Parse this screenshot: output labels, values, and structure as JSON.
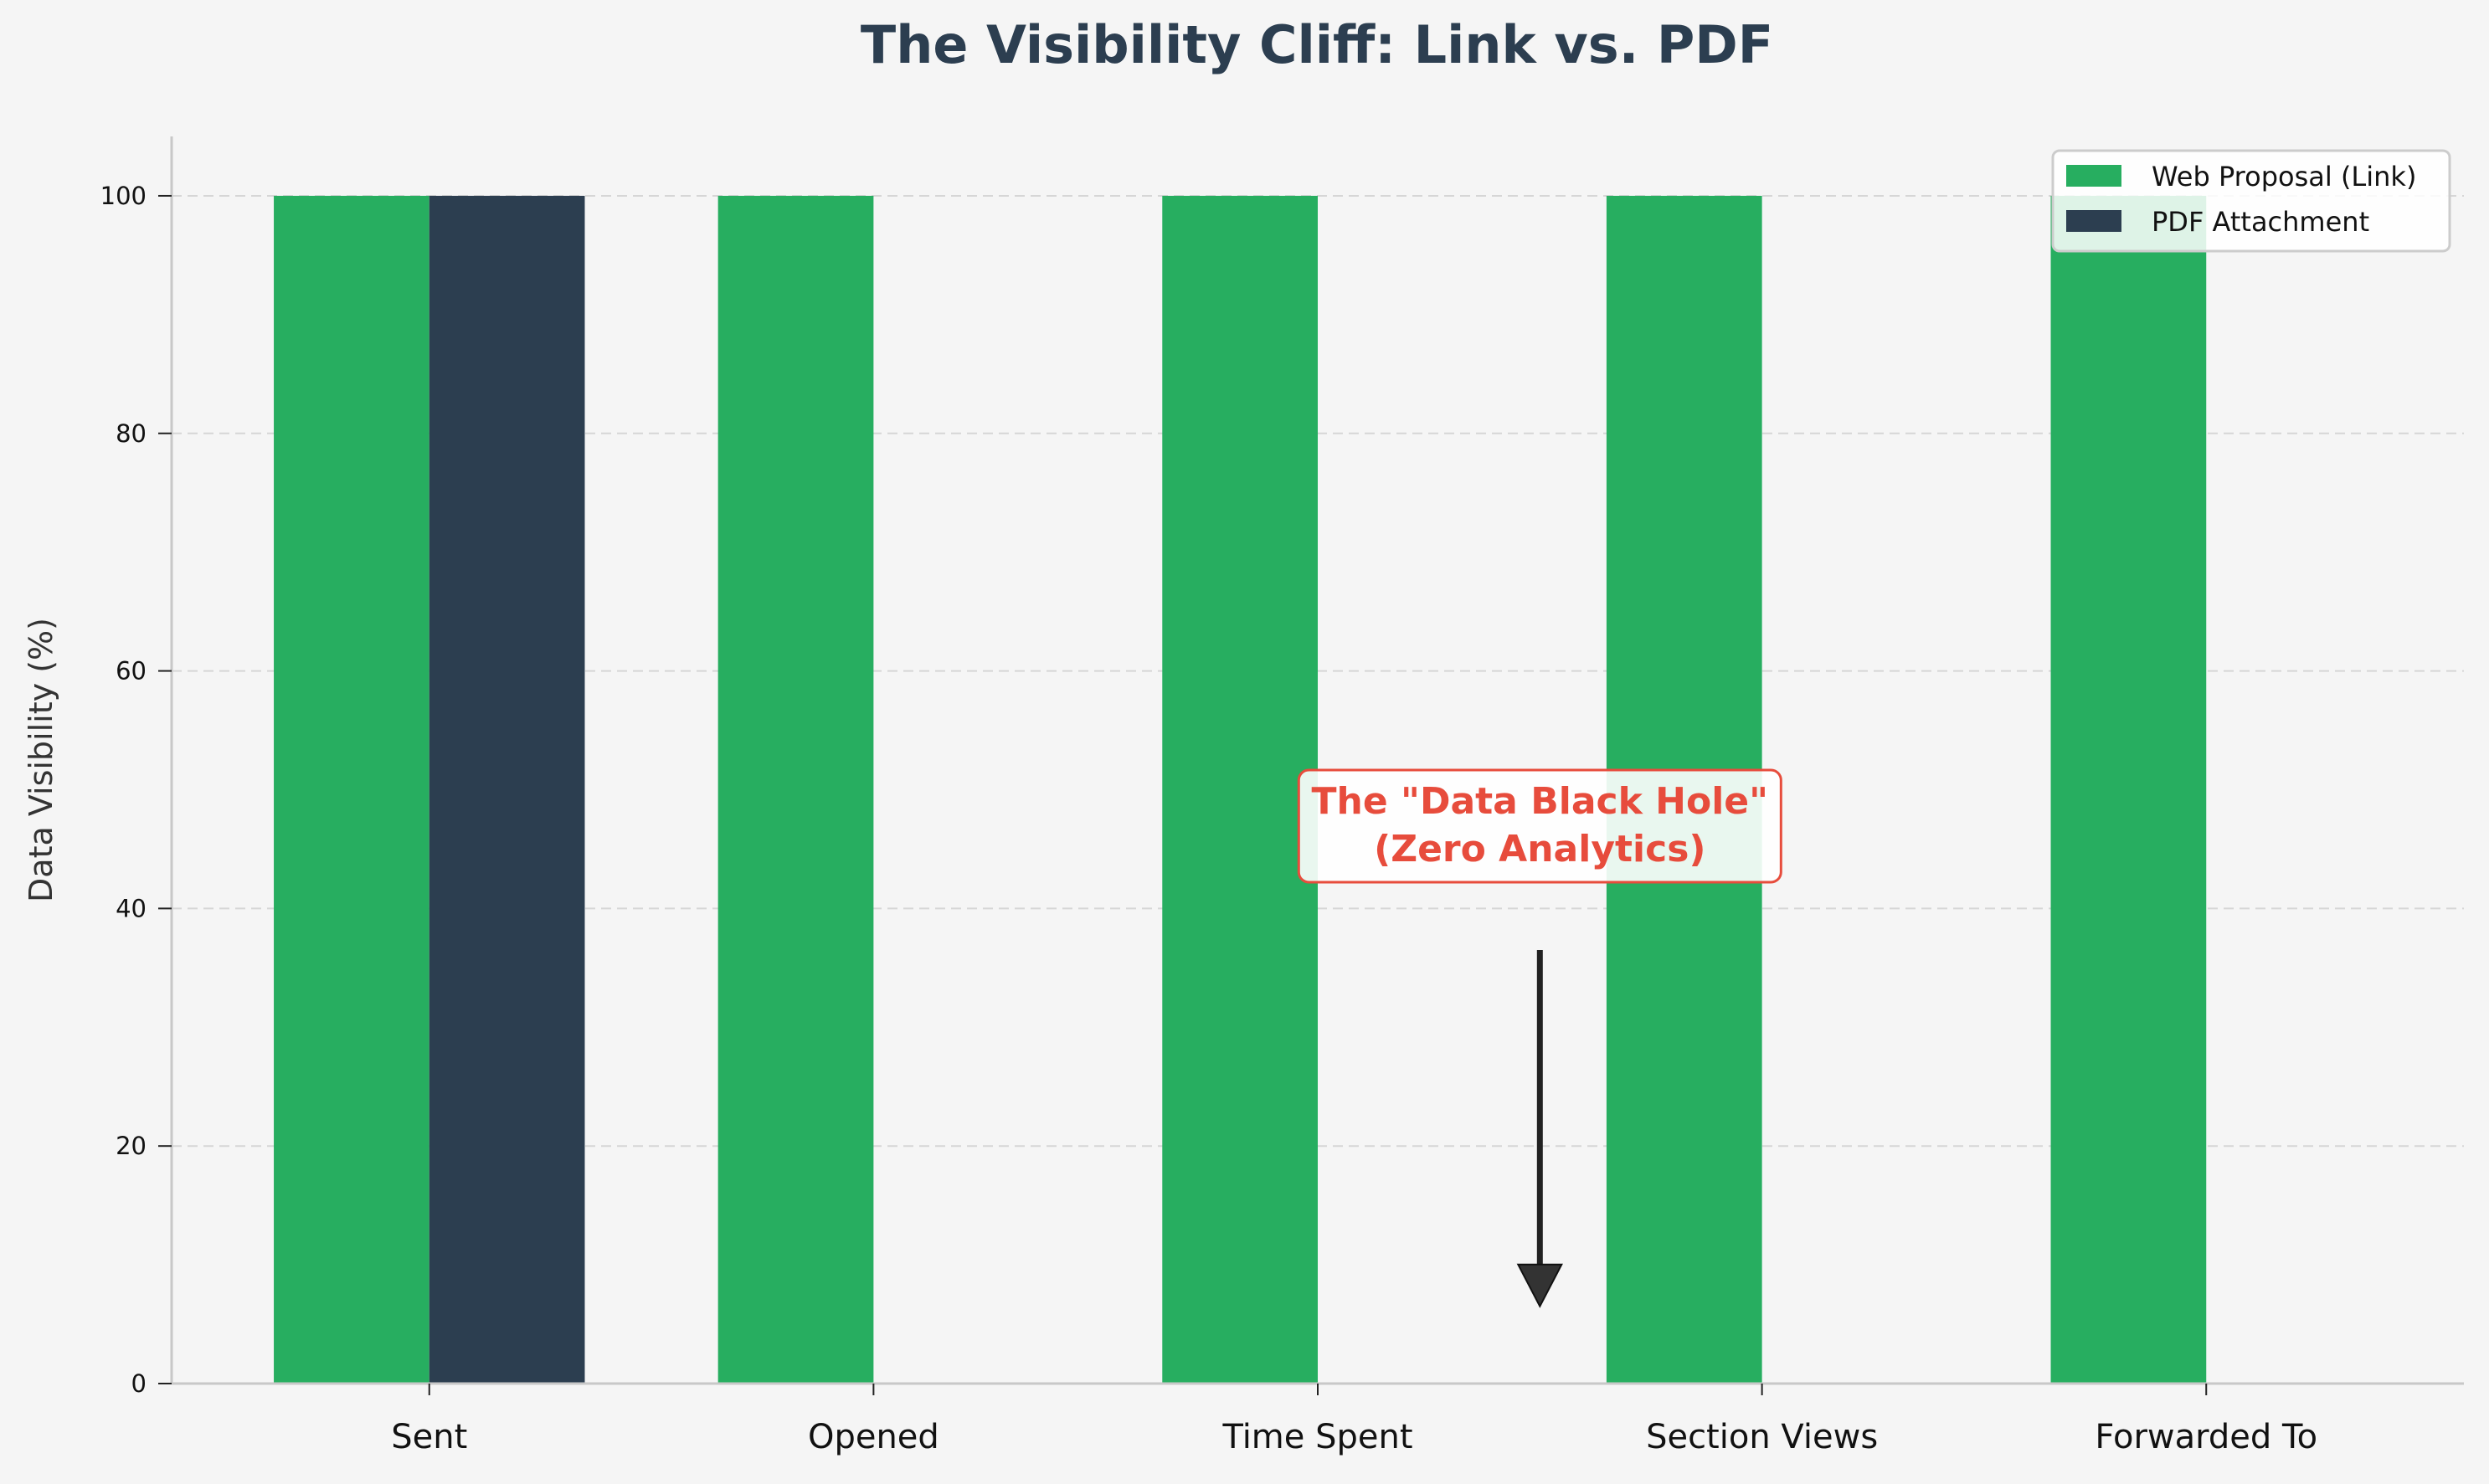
{
  "chart_data": {
    "type": "bar",
    "title": "The Visibility Cliff: Link vs. PDF",
    "xlabel": "",
    "ylabel": "Data Visibility (%)",
    "ylim": [
      0,
      105
    ],
    "yticks": [
      0,
      20,
      40,
      60,
      80,
      100
    ],
    "grid": "y-dashed",
    "categories": [
      "Sent",
      "Opened",
      "Time Spent",
      "Section Views",
      "Forwarded To"
    ],
    "series": [
      {
        "name": "Web Proposal (Link)",
        "color": "#27ae60",
        "values": [
          100,
          100,
          100,
          100,
          100
        ]
      },
      {
        "name": "PDF Attachment",
        "color": "#2c3e50",
        "values": [
          100,
          0,
          0,
          0,
          0
        ]
      }
    ],
    "legend_position": "top-right",
    "annotation": {
      "line1": "The \"Data Black Hole\"",
      "line2": "(Zero Analytics)",
      "color": "#e74c3c",
      "text_at": {
        "x": 2.5,
        "y": 42
      },
      "arrow_from": {
        "x": 2.5,
        "y": 36.5
      },
      "arrow_to": {
        "x": 2.5,
        "y": 6.5
      }
    }
  }
}
